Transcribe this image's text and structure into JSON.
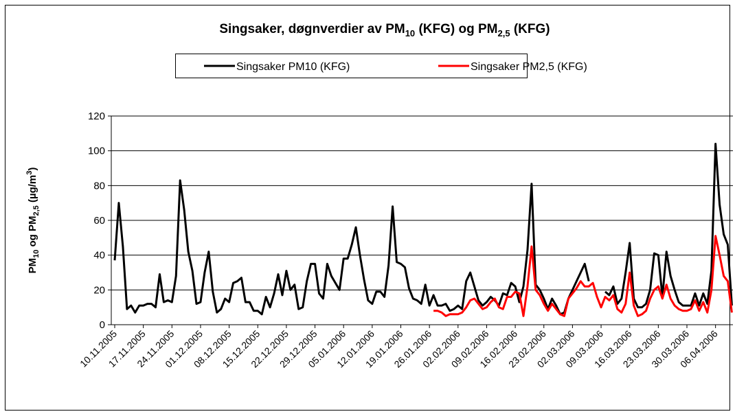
{
  "chart_data": {
    "type": "line",
    "title_parts": [
      "Singsaker, døgnverdier av PM",
      "10",
      " (KFG) og PM",
      "2,5",
      " (KFG)"
    ],
    "y_label_parts": [
      "PM",
      "10",
      " og PM",
      "2,5",
      " (µg/m",
      "3",
      ")"
    ],
    "categories": [
      "10.11.2005",
      null,
      null,
      null,
      null,
      null,
      null,
      "17.11.2005",
      null,
      null,
      null,
      null,
      null,
      null,
      "24.11.2005",
      null,
      null,
      null,
      null,
      null,
      null,
      "01.12.2005",
      null,
      null,
      null,
      null,
      null,
      null,
      "08.12.2005",
      null,
      null,
      null,
      null,
      null,
      null,
      "15.12.2005",
      null,
      null,
      null,
      null,
      null,
      null,
      "22.12.2005",
      null,
      null,
      null,
      null,
      null,
      null,
      "29.12.2005",
      null,
      null,
      null,
      null,
      null,
      null,
      "05.01.2006",
      null,
      null,
      null,
      null,
      null,
      null,
      "12.01.2006",
      null,
      null,
      null,
      null,
      null,
      null,
      "19.01.2006",
      null,
      null,
      null,
      null,
      null,
      null,
      "26.01.2006",
      null,
      null,
      null,
      null,
      null,
      null,
      "02.02.2006",
      null,
      null,
      null,
      null,
      null,
      null,
      "09.02.2006",
      null,
      null,
      null,
      null,
      null,
      null,
      "16.02.2006",
      null,
      null,
      null,
      null,
      null,
      null,
      "23.02.2006",
      null,
      null,
      null,
      null,
      null,
      null,
      "02.03.2006",
      null,
      null,
      null,
      null,
      null,
      null,
      "09.03.2006",
      null,
      null,
      null,
      null,
      null,
      null,
      "16.03.2006",
      null,
      null,
      null,
      null,
      null,
      null,
      "23.03.2006",
      null,
      null,
      null,
      null,
      null,
      null,
      "30.03.2006",
      null,
      null,
      null,
      null,
      null,
      null,
      "06.04.2006",
      null,
      null,
      null,
      null
    ],
    "series": [
      {
        "name": "Singsaker PM10 (KFG)",
        "color": "#000000",
        "values": [
          37,
          70,
          45,
          9,
          11,
          7,
          11,
          11,
          12,
          12,
          10,
          29,
          13,
          14,
          13,
          28,
          83,
          66,
          42,
          31,
          12,
          13,
          30,
          42,
          19,
          7,
          9,
          15,
          13,
          24,
          25,
          27,
          13,
          13,
          8,
          8,
          6,
          16,
          10,
          18,
          29,
          17,
          31,
          20,
          23,
          9,
          10,
          25,
          35,
          35,
          18,
          15,
          35,
          28,
          24,
          20,
          38,
          38,
          46,
          56,
          40,
          26,
          14,
          12,
          19,
          19,
          16,
          34,
          68,
          36,
          35,
          33,
          21,
          15,
          14,
          12,
          23,
          11,
          17,
          11,
          11,
          12,
          8,
          9,
          11,
          9,
          25,
          30,
          22,
          14,
          11,
          13,
          16,
          14,
          11,
          18,
          17,
          24,
          22,
          13,
          22,
          43,
          81,
          23,
          20,
          15,
          9,
          15,
          11,
          6,
          7,
          15,
          20,
          25,
          30,
          35,
          25,
          null,
          null,
          null,
          19,
          17,
          22,
          12,
          15,
          30,
          47,
          15,
          10,
          10,
          12,
          20,
          41,
          40,
          16,
          42,
          28,
          20,
          13,
          11,
          11,
          11,
          18,
          11,
          18,
          12,
          31,
          104,
          69,
          52,
          46,
          11
        ]
      },
      {
        "name": "Singsaker PM2,5 (KFG)",
        "color": "#ff0000",
        "values": [
          null,
          null,
          null,
          null,
          null,
          null,
          null,
          null,
          null,
          null,
          null,
          null,
          null,
          null,
          null,
          null,
          null,
          null,
          null,
          null,
          null,
          null,
          null,
          null,
          null,
          null,
          null,
          null,
          null,
          null,
          null,
          null,
          null,
          null,
          null,
          null,
          null,
          null,
          null,
          null,
          null,
          null,
          null,
          null,
          null,
          null,
          null,
          null,
          null,
          null,
          null,
          null,
          null,
          null,
          null,
          null,
          null,
          null,
          null,
          null,
          null,
          null,
          null,
          null,
          null,
          null,
          null,
          null,
          null,
          null,
          null,
          null,
          null,
          null,
          null,
          null,
          null,
          null,
          8,
          8,
          7,
          5,
          6,
          6,
          6,
          7,
          10,
          14,
          15,
          12,
          9,
          10,
          13,
          15,
          10,
          9,
          16,
          16,
          19,
          18,
          5,
          22,
          45,
          20,
          17,
          12,
          8,
          12,
          9,
          6,
          5,
          15,
          18,
          21,
          25,
          22,
          22,
          24,
          16,
          10,
          16,
          14,
          17,
          9,
          7,
          12,
          30,
          11,
          5,
          6,
          8,
          15,
          20,
          22,
          15,
          23,
          15,
          11,
          9,
          8,
          8,
          9,
          14,
          8,
          13,
          7,
          20,
          51,
          40,
          28,
          25,
          7
        ]
      }
    ],
    "ylim": [
      0,
      120
    ],
    "yticks": [
      0,
      20,
      40,
      60,
      80,
      100,
      120
    ],
    "grid": true
  }
}
